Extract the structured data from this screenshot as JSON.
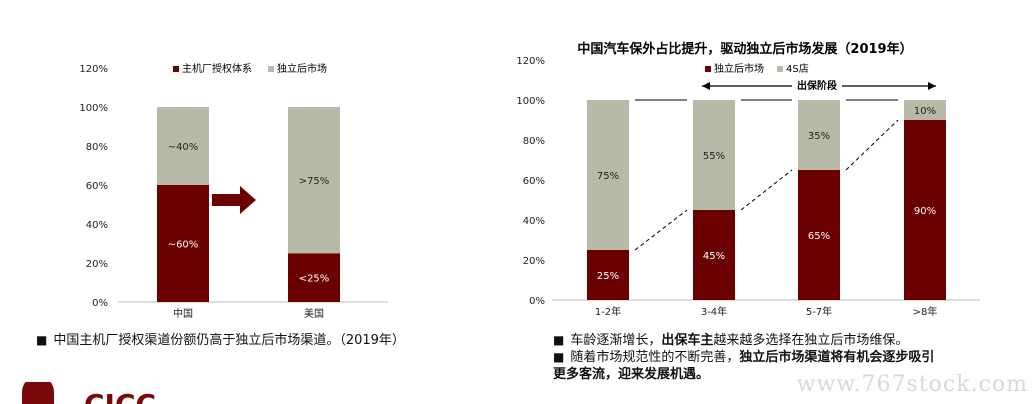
{
  "colors": {
    "dark": "#6b0000",
    "light": "#b9b9a8",
    "axis": "#bfbfbf"
  },
  "left": {
    "legend": [
      "主机厂授权体系",
      "独立后市场"
    ],
    "caption": "中国主机厂授权渠道份额仍高于独立后市场渠道。（2019年）",
    "chart_data": {
      "type": "bar",
      "stacked": true,
      "categories": [
        "中国",
        "美国"
      ],
      "series": [
        {
          "name": "主机厂授权体系",
          "values": [
            60,
            25
          ],
          "labels": [
            "~60%",
            "<25%"
          ]
        },
        {
          "name": "独立后市场",
          "values": [
            40,
            75
          ],
          "labels": [
            "~40%",
            ">75%"
          ]
        }
      ],
      "ylim": [
        0,
        120
      ],
      "yticks": [
        "0%",
        "20%",
        "40%",
        "60%",
        "80%",
        "100%",
        "120%"
      ],
      "legend_position": "top"
    }
  },
  "right": {
    "title": "中国汽车保外占比提升，驱动独立后市场发展（2019年）",
    "legend": [
      "独立后市场",
      "4S店"
    ],
    "annotation": "出保阶段",
    "caption1_pre": "车龄逐渐增长，",
    "caption1_bold": "出保车主",
    "caption1_post": "越来越多选择在独立后市场维保。",
    "caption2_pre": "随着市场规范性的不断完善，",
    "caption2_bold_a": "独立后市场渠道将有机会逐步吸引",
    "caption2_bold_b": "更多客流，迎来发展机遇。",
    "chart_data": {
      "type": "bar",
      "stacked": true,
      "title": "中国汽车保外占比提升，驱动独立后市场发展（2019年）",
      "categories": [
        "1-2年",
        "3-4年",
        "5-7年",
        ">8年"
      ],
      "series": [
        {
          "name": "独立后市场",
          "values": [
            25,
            45,
            65,
            90
          ]
        },
        {
          "name": "4S店",
          "values": [
            75,
            55,
            35,
            10
          ]
        }
      ],
      "ylim": [
        0,
        120
      ],
      "yticks": [
        "0%",
        "20%",
        "40%",
        "60%",
        "80%",
        "100%",
        "120%"
      ],
      "legend_position": "top"
    }
  },
  "watermark": "www.767stock.com",
  "logo_text": "CICC"
}
